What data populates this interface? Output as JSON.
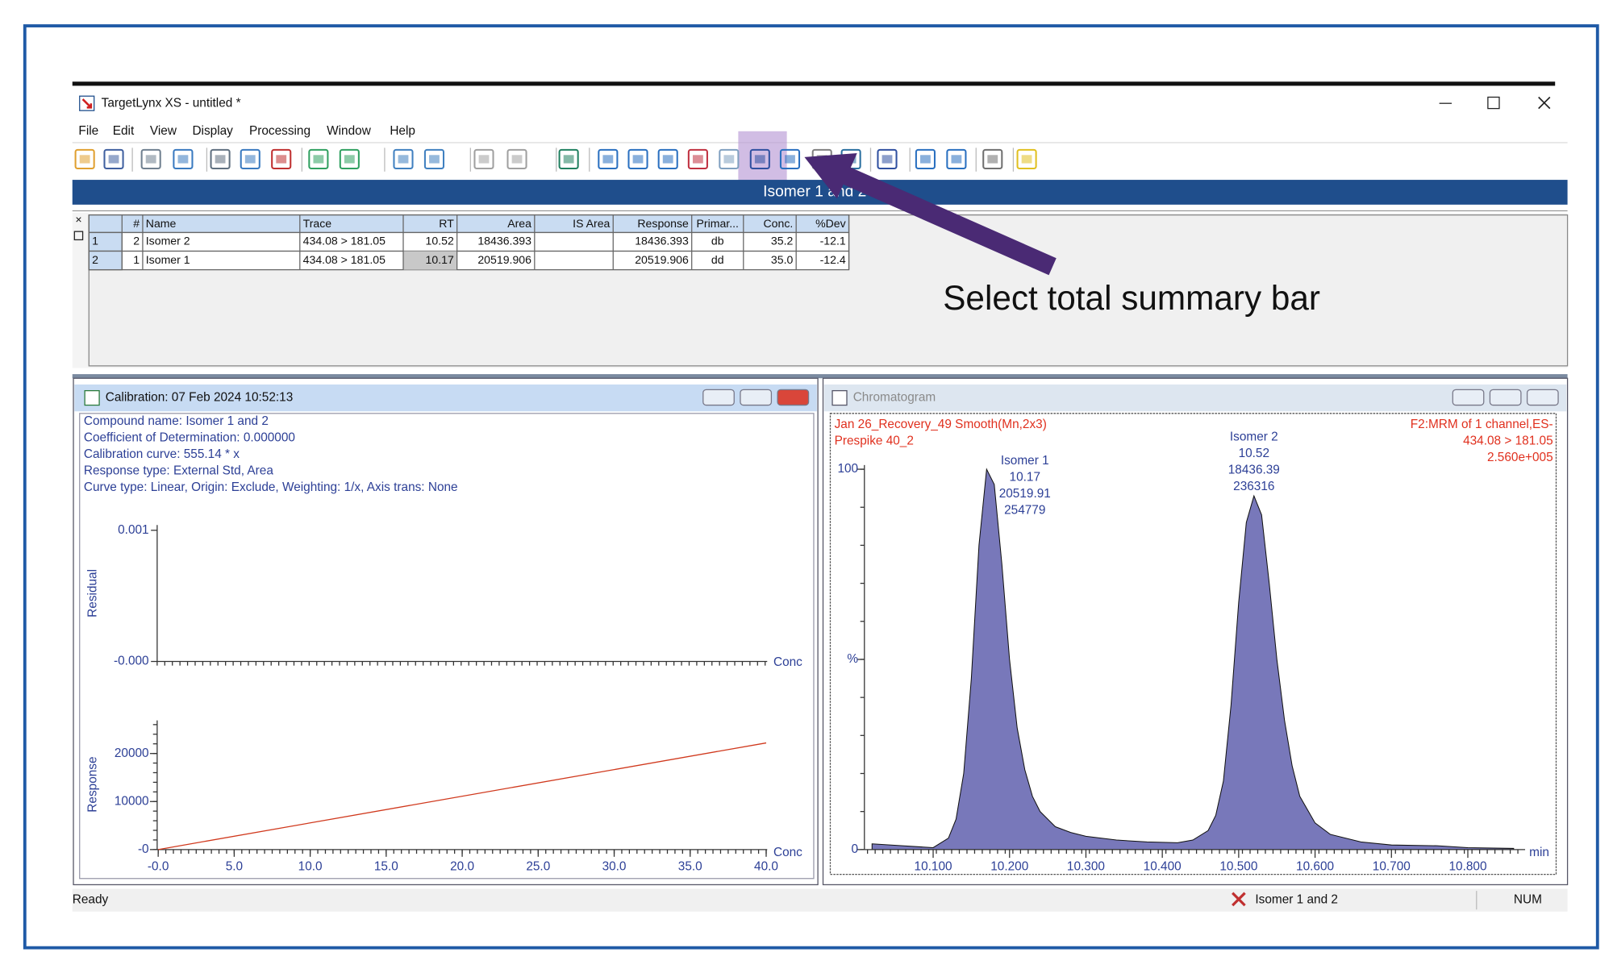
{
  "window": {
    "title": "TargetLynx XS - untitled *"
  },
  "menu": [
    "File",
    "Edit",
    "View",
    "Display",
    "Processing",
    "Window",
    "Help"
  ],
  "banner": "Isomer 1 and 2",
  "table": {
    "headers": {
      "num": "#",
      "name": "Name",
      "trace": "Trace",
      "rt": "RT",
      "area": "Area",
      "is_area": "IS Area",
      "response": "Response",
      "primary": "Primar...",
      "conc": "Conc.",
      "dev": "%Dev"
    },
    "rows": [
      {
        "index": "1",
        "num": "2",
        "name": "Isomer 2",
        "trace": "434.08 > 181.05",
        "rt": "10.52",
        "area": "18436.393",
        "response": "18436.393",
        "primary": "db",
        "conc": "35.2",
        "dev": "-12.1"
      },
      {
        "index": "2",
        "num": "1",
        "name": "Isomer 1",
        "trace": "434.08 > 181.05",
        "rt": "10.17",
        "area": "20519.906",
        "response": "20519.906",
        "primary": "dd",
        "conc": "35.0",
        "dev": "-12.4"
      }
    ]
  },
  "annotation": "Select total summary bar",
  "calibration": {
    "title": "Calibration: 07 Feb 2024 10:52:13",
    "info": [
      "Compound name: Isomer 1 and 2",
      "Coefficient of Determination: 0.000000",
      "Calibration curve: 555.14 * x",
      "Response type: External Std, Area",
      "Curve type: Linear, Origin: Exclude, Weighting: 1/x, Axis trans: None"
    ],
    "residual_plot": {
      "ylabel": "Residual",
      "xlabel": "Conc",
      "ylim": [
        0,
        0.00104
      ],
      "yticks": [
        0.001,
        {
          "value": 0,
          "label": "-0.000"
        }
      ]
    },
    "response_plot": {
      "ylabel": "Response",
      "xlabel": "Conc",
      "xlim": [
        0,
        40
      ],
      "ylim": [
        0,
        26900
      ],
      "xticks": [
        {
          "value": 0,
          "label": "-0.0"
        },
        {
          "value": 5,
          "label": "5.0"
        },
        {
          "value": 10,
          "label": "10.0"
        },
        {
          "value": 15,
          "label": "15.0"
        },
        {
          "value": 20,
          "label": "20.0"
        },
        {
          "value": 25,
          "label": "25.0"
        },
        {
          "value": 30,
          "label": "30.0"
        },
        {
          "value": 35,
          "label": "35.0"
        },
        {
          "value": 40,
          "label": "40.0"
        }
      ],
      "yticks": [
        20000,
        10000,
        {
          "value": 0,
          "label": "-0"
        }
      ],
      "x": [
        0,
        40
      ],
      "y": [
        0,
        22205.6
      ],
      "color": "#d0381c"
    }
  },
  "chromatogram": {
    "title": "Chromatogram",
    "sample": [
      "Jan 26_Recovery_49 Smooth(Mn,2x3)",
      "Prespike 40_2"
    ],
    "channel": [
      "F2:MRM of 1 channel,ES-",
      "434.08 > 181.05",
      "2.560e+005"
    ],
    "peaks": [
      {
        "x": 10.17,
        "labels": [
          "Isomer 1",
          "10.17",
          "20519.91",
          "254779"
        ]
      },
      {
        "x": 10.52,
        "labels": [
          "Isomer 2",
          "10.52",
          "18436.39",
          "236316"
        ]
      }
    ],
    "xlabel": "min",
    "xlim": [
      10.01,
      10.875
    ],
    "ylim": [
      0,
      100
    ],
    "xticks": [
      {
        "value": 10.1,
        "label": "10.100"
      },
      {
        "value": 10.2,
        "label": "10.200"
      },
      {
        "value": 10.3,
        "label": "10.300"
      },
      {
        "value": 10.4,
        "label": "10.400"
      },
      {
        "value": 10.5,
        "label": "10.500"
      },
      {
        "value": 10.6,
        "label": "10.600"
      },
      {
        "value": 10.7,
        "label": "10.700"
      },
      {
        "value": 10.8,
        "label": "10.800"
      }
    ],
    "yticks": [
      100,
      {
        "value": 50,
        "label": "%"
      },
      0
    ],
    "x": [
      10.02,
      10.06,
      10.1,
      10.12,
      10.13,
      10.14,
      10.15,
      10.16,
      10.17,
      10.18,
      10.19,
      10.2,
      10.21,
      10.22,
      10.23,
      10.24,
      10.26,
      10.28,
      10.3,
      10.34,
      10.38,
      10.42,
      10.44,
      10.46,
      10.47,
      10.48,
      10.49,
      10.5,
      10.51,
      10.52,
      10.53,
      10.54,
      10.55,
      10.56,
      10.57,
      10.58,
      10.6,
      10.62,
      10.66,
      10.7,
      10.76,
      10.8,
      10.86
    ],
    "y": [
      1.5,
      1,
      0.5,
      3,
      8,
      20,
      45,
      80,
      100,
      96,
      75,
      50,
      32,
      21,
      14,
      10,
      6,
      4.5,
      3.5,
      2.5,
      2,
      1.8,
      2.5,
      5,
      9,
      18,
      38,
      65,
      86,
      93,
      88,
      70,
      50,
      34,
      22,
      14,
      7,
      4,
      2,
      1.2,
      1,
      0.5,
      0.3
    ],
    "fill": "#7878ba"
  },
  "status": {
    "left": "Ready",
    "compound": "Isomer 1 and 2",
    "num": "NUM"
  }
}
